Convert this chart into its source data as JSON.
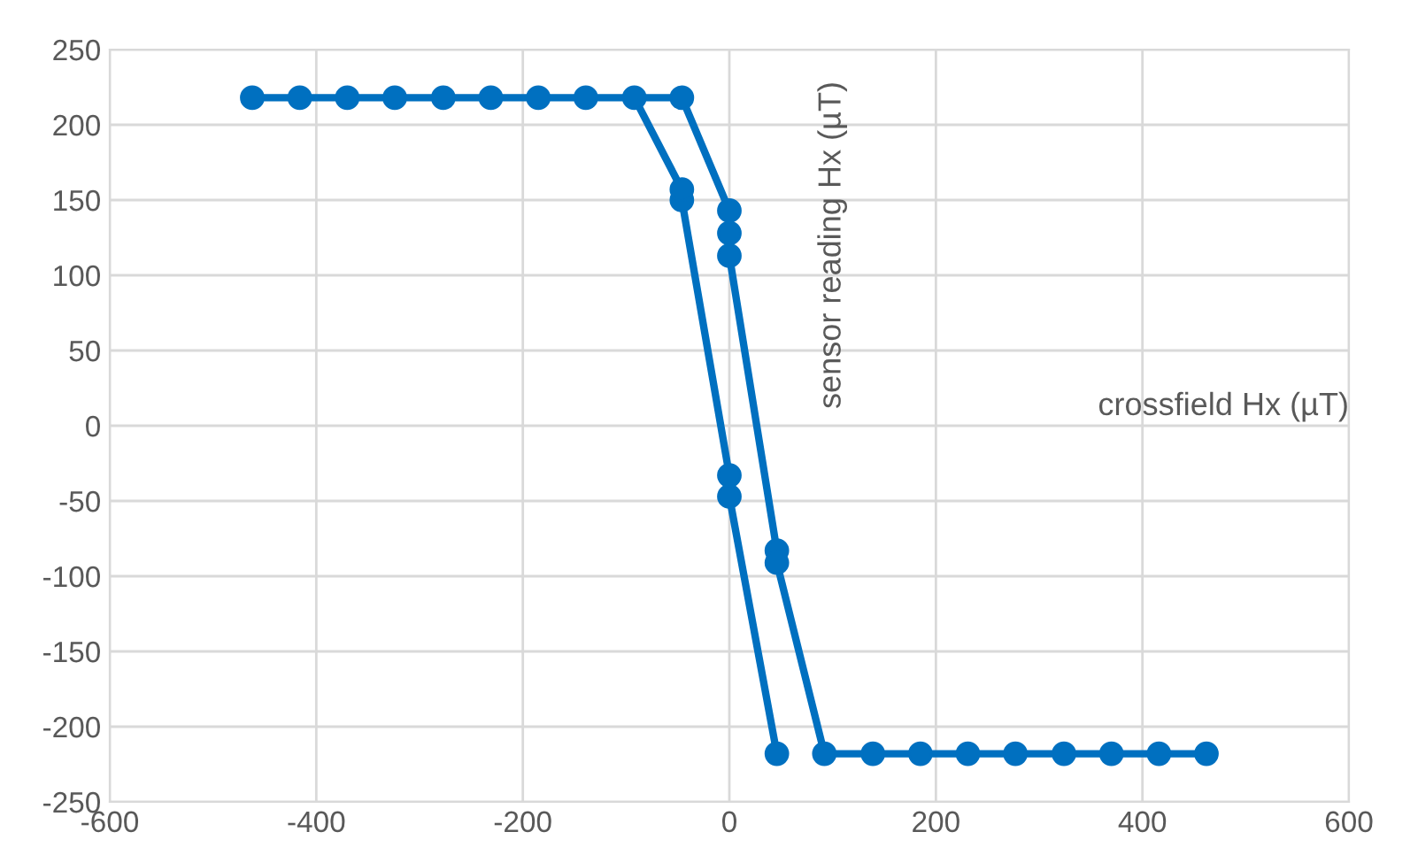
{
  "chart_data": {
    "type": "line",
    "xlabel": "crossfield Hx (µT)",
    "ylabel": "sensor reading Hx (µT)",
    "series": [
      {
        "color": "#0070c0",
        "x": [
          -462,
          -416,
          -370,
          -324,
          -277,
          -231,
          -185,
          -139,
          -46,
          0,
          0,
          0,
          46,
          46,
          92,
          139,
          185,
          231,
          277,
          324,
          370,
          416,
          462
        ],
        "values": [
          218,
          218,
          218,
          218,
          218,
          218,
          218,
          218,
          218,
          143,
          128,
          113,
          -83,
          -91,
          -218,
          -218,
          -218,
          -218,
          -218,
          -218,
          -218,
          -218,
          -218
        ]
      },
      {
        "color": "#0070c0",
        "x": [
          46,
          0,
          0,
          -46,
          -46,
          -92
        ],
        "values": [
          -218,
          -47,
          -33,
          150,
          157,
          218
        ]
      }
    ],
    "xlim": [
      -600,
      600
    ],
    "xticks": [
      -600,
      -400,
      -200,
      0,
      200,
      400,
      600
    ],
    "ylim": [
      -250,
      250
    ],
    "yticks": [
      -250,
      -200,
      -150,
      -100,
      -50,
      0,
      50,
      100,
      150,
      200,
      250
    ],
    "grid": true,
    "marker": "circle",
    "line_style": "solid"
  }
}
